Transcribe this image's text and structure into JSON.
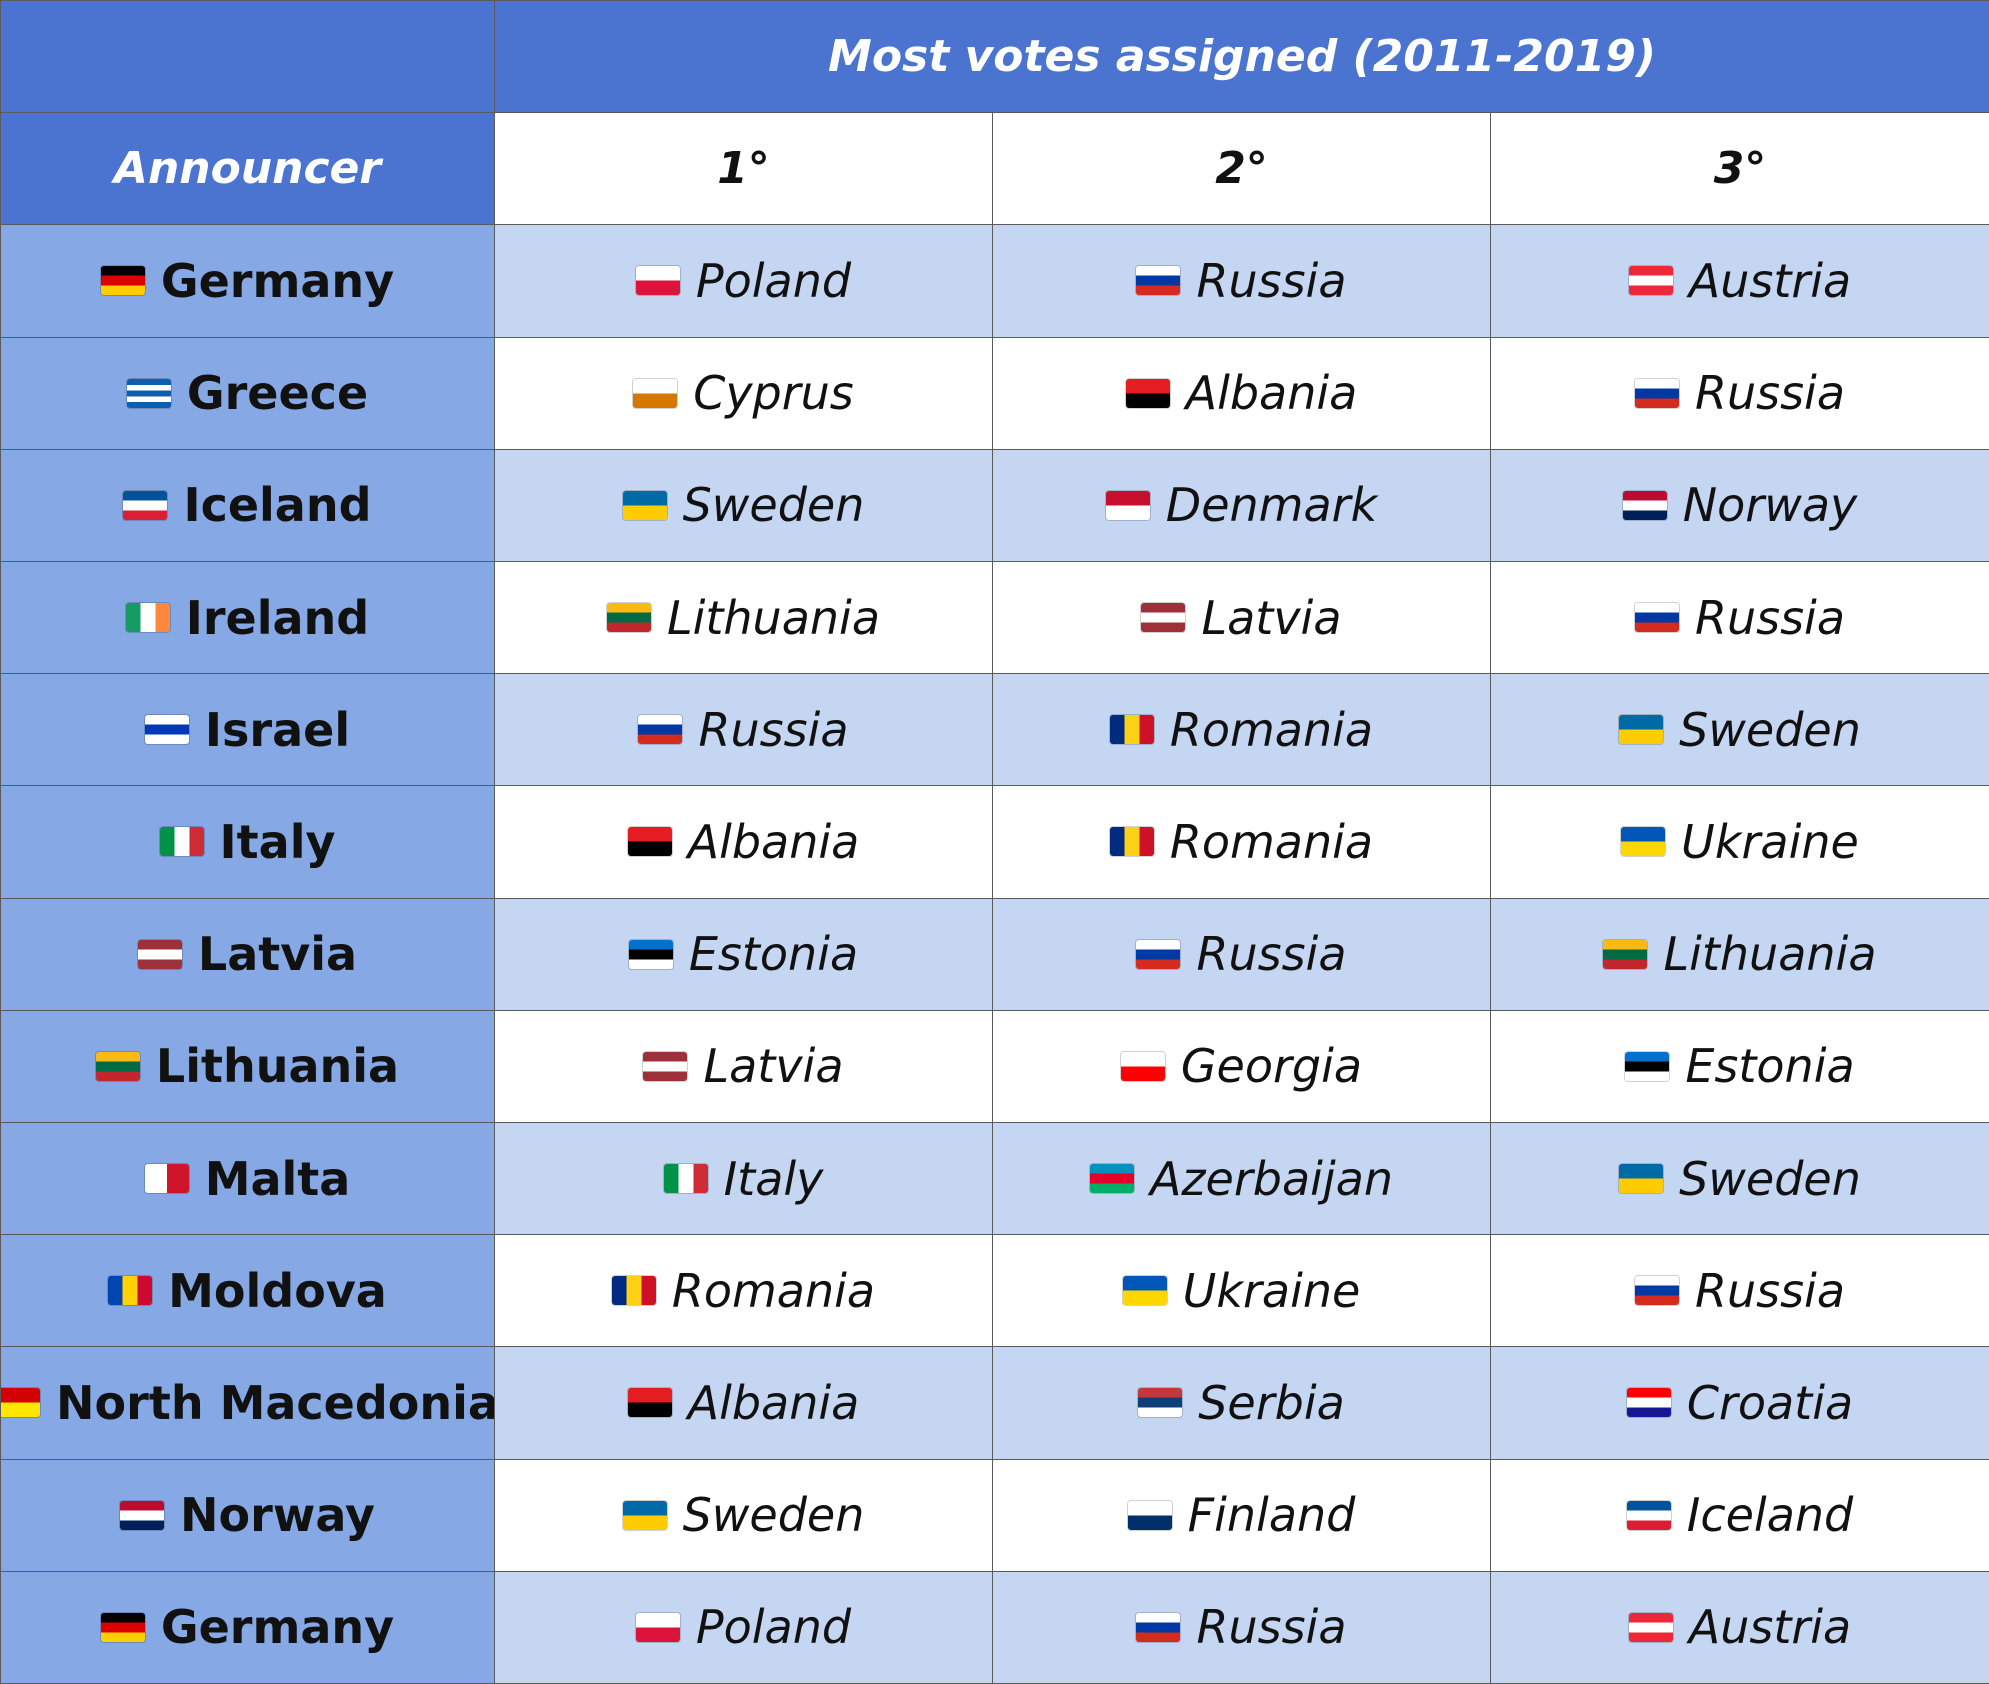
{
  "title": "Most votes assigned (2011-2019)",
  "announcer_header": "Announcer",
  "rank_headers": [
    "1°",
    "2°",
    "3°"
  ],
  "flag_colors": {
    "Germany": [
      "#000000",
      "#dd0000",
      "#ffce00"
    ],
    "Greece": [
      "#0d5eaf",
      "#ffffff",
      "#0d5eaf",
      "#ffffff",
      "#0d5eaf"
    ],
    "Iceland": [
      "#02529c",
      "#ffffff",
      "#dc1e35"
    ],
    "Ireland": [
      "#169b62",
      "#ffffff",
      "#ff883e"
    ],
    "Israel": [
      "#ffffff",
      "#0038b8",
      "#ffffff"
    ],
    "Italy": [
      "#009246",
      "#ffffff",
      "#ce2b37"
    ],
    "Latvia": [
      "#9e3039",
      "#ffffff",
      "#9e3039"
    ],
    "Lithuania": [
      "#fdb913",
      "#006a44",
      "#c1272d"
    ],
    "Malta": [
      "#ffffff",
      "#cf142b"
    ],
    "Moldova": [
      "#0046ae",
      "#ffd200",
      "#cc092f"
    ],
    "North Macedonia": [
      "#d20000",
      "#ffe600"
    ],
    "Norway": [
      "#ba0c2f",
      "#ffffff",
      "#00205b"
    ],
    "Poland": [
      "#ffffff",
      "#dc143c"
    ],
    "Russia": [
      "#ffffff",
      "#0039a6",
      "#d52b1e"
    ],
    "Austria": [
      "#ed2939",
      "#ffffff",
      "#ed2939"
    ],
    "Cyprus": [
      "#ffffff",
      "#d57800"
    ],
    "Albania": [
      "#e41e20",
      "#000000"
    ],
    "Sweden": [
      "#006aa7",
      "#fecc00"
    ],
    "Denmark": [
      "#c8102e",
      "#ffffff"
    ],
    "Romania": [
      "#002b7f",
      "#fcd116",
      "#ce1126"
    ],
    "Ukraine": [
      "#0057b7",
      "#ffd700"
    ],
    "Estonia": [
      "#0072ce",
      "#000000",
      "#ffffff"
    ],
    "Georgia": [
      "#ffffff",
      "#ff0000"
    ],
    "Azerbaijan": [
      "#0092bc",
      "#e4002b",
      "#00af66"
    ],
    "Serbia": [
      "#c6363c",
      "#0c4076",
      "#ffffff"
    ],
    "Croatia": [
      "#ff0000",
      "#ffffff",
      "#171796"
    ],
    "Finland": [
      "#ffffff",
      "#002f6c"
    ]
  },
  "rows": [
    {
      "announcer": "Germany",
      "first": "Poland",
      "second": "Russia",
      "third": "Austria"
    },
    {
      "announcer": "Greece",
      "first": "Cyprus",
      "second": "Albania",
      "third": "Russia"
    },
    {
      "announcer": "Iceland",
      "first": "Sweden",
      "second": "Denmark",
      "third": "Norway"
    },
    {
      "announcer": "Ireland",
      "first": "Lithuania",
      "second": "Latvia",
      "third": "Russia"
    },
    {
      "announcer": "Israel",
      "first": "Russia",
      "second": "Romania",
      "third": "Sweden"
    },
    {
      "announcer": "Italy",
      "first": "Albania",
      "second": "Romania",
      "third": "Ukraine"
    },
    {
      "announcer": "Latvia",
      "first": "Estonia",
      "second": "Russia",
      "third": "Lithuania"
    },
    {
      "announcer": "Lithuania",
      "first": "Latvia",
      "second": "Georgia",
      "third": "Estonia"
    },
    {
      "announcer": "Malta",
      "first": "Italy",
      "second": "Azerbaijan",
      "third": "Sweden"
    },
    {
      "announcer": "Moldova",
      "first": "Romania",
      "second": "Ukraine",
      "third": "Russia"
    },
    {
      "announcer": "North Macedonia",
      "first": "Albania",
      "second": "Serbia",
      "third": "Croatia"
    },
    {
      "announcer": "Norway",
      "first": "Sweden",
      "second": "Finland",
      "third": "Iceland"
    },
    {
      "announcer": "Germany",
      "first": "Poland",
      "second": "Russia",
      "third": "Austria"
    }
  ]
}
